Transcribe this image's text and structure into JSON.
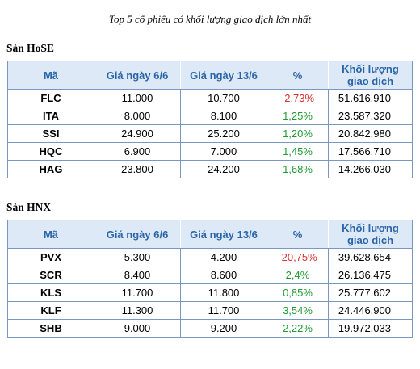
{
  "title": "Top 5 cổ phiếu có khối lượng giao dịch lớn nhất",
  "colors": {
    "header_bg": "#dde9f6",
    "header_text": "#2a65a8",
    "positive": "#1f9a33",
    "negative": "#d63030",
    "border": "#7a98bd"
  },
  "headers": {
    "code": "Mã",
    "price1": "Giá ngày 6/6",
    "price2": "Giá ngày 13/6",
    "pct": "%",
    "vol_line1": "Khối lượng",
    "vol_line2": "giao dịch"
  },
  "hose": {
    "label": "Sàn HoSE",
    "rows": [
      {
        "code": "FLC",
        "price1": "11.000",
        "price2": "10.700",
        "pct": "-2,73%",
        "vol": "51.616.910"
      },
      {
        "code": "ITA",
        "price1": "8.000",
        "price2": "8.100",
        "pct": "1,25%",
        "vol": "23.587.320"
      },
      {
        "code": "SSI",
        "price1": "24.900",
        "price2": "25.200",
        "pct": "1,20%",
        "vol": "20.842.980"
      },
      {
        "code": "HQC",
        "price1": "6.900",
        "price2": "7.000",
        "pct": "1,45%",
        "vol": "17.566.710"
      },
      {
        "code": "HAG",
        "price1": "23.800",
        "price2": "24.200",
        "pct": "1,68%",
        "vol": "14.266.030"
      }
    ]
  },
  "hnx": {
    "label": "Sàn HNX",
    "rows": [
      {
        "code": "PVX",
        "price1": "5.300",
        "price2": "4.200",
        "pct": "-20,75%",
        "vol": "39.628.654"
      },
      {
        "code": "SCR",
        "price1": "8.400",
        "price2": "8.600",
        "pct": "2,4%",
        "vol": "26.136.475"
      },
      {
        "code": "KLS",
        "price1": "11.700",
        "price2": "11.800",
        "pct": "0,85%",
        "vol": "25.777.602"
      },
      {
        "code": "KLF",
        "price1": "11.300",
        "price2": "11.700",
        "pct": "3,54%",
        "vol": "24.446.900"
      },
      {
        "code": "SHB",
        "price1": "9.000",
        "price2": "9.200",
        "pct": "2,22%",
        "vol": "19.972.033"
      }
    ]
  }
}
